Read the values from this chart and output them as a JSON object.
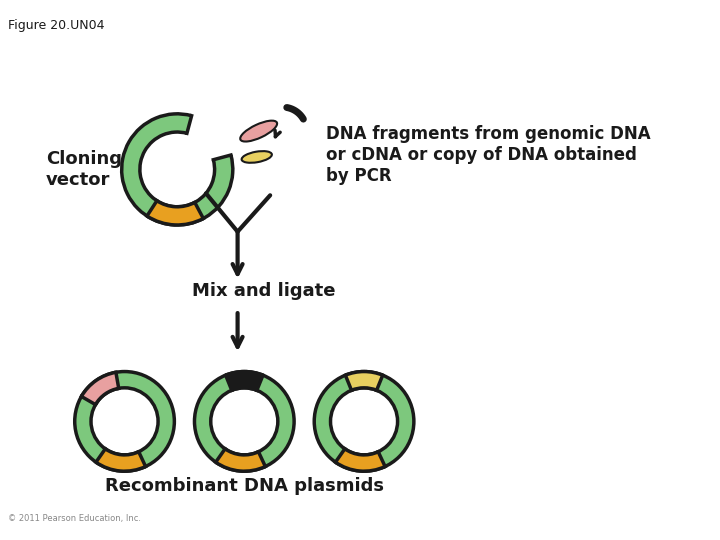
{
  "figure_label": "Figure 20.UN04",
  "copyright": "© 2011 Pearson Education, Inc.",
  "cloning_vector_label": "Cloning\nvector",
  "dna_fragments_label": "DNA fragments from genomic DNA\nor cDNA or copy of DNA obtained\nby PCR",
  "mix_ligate_label": "Mix and ligate",
  "recombinant_label": "Recombinant DNA plasmids",
  "green_color": "#7DC87D",
  "orange_color": "#E8A020",
  "pink_color": "#E8A0A0",
  "yellow_color": "#E8D060",
  "black_color": "#1A1A1A",
  "background": "#FFFFFF"
}
